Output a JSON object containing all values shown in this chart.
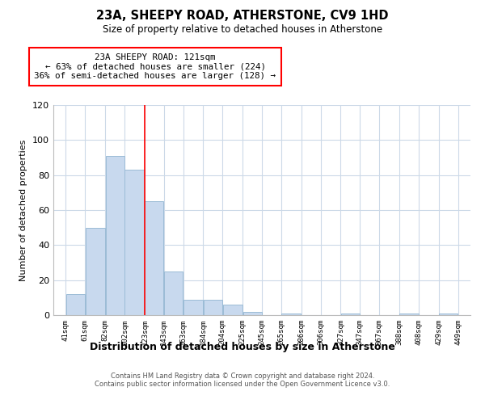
{
  "title": "23A, SHEEPY ROAD, ATHERSTONE, CV9 1HD",
  "subtitle": "Size of property relative to detached houses in Atherstone",
  "xlabel": "Distribution of detached houses by size in Atherstone",
  "ylabel": "Number of detached properties",
  "bar_left_edges": [
    41,
    61,
    82,
    102,
    123,
    143,
    163,
    184,
    204,
    225,
    245,
    265,
    286,
    306,
    327,
    347,
    367,
    388,
    408,
    429
  ],
  "bar_widths": [
    20,
    21,
    20,
    21,
    20,
    20,
    21,
    20,
    21,
    20,
    20,
    21,
    20,
    21,
    20,
    20,
    21,
    20,
    21,
    20
  ],
  "bar_heights": [
    12,
    50,
    91,
    83,
    65,
    25,
    9,
    9,
    6,
    2,
    0,
    1,
    0,
    0,
    1,
    0,
    0,
    1,
    0,
    1
  ],
  "bar_color": "#c8d9ee",
  "bar_edgecolor": "#9bbcd6",
  "tick_labels": [
    "41sqm",
    "61sqm",
    "82sqm",
    "102sqm",
    "123sqm",
    "143sqm",
    "163sqm",
    "184sqm",
    "204sqm",
    "225sqm",
    "245sqm",
    "265sqm",
    "286sqm",
    "306sqm",
    "327sqm",
    "347sqm",
    "367sqm",
    "388sqm",
    "408sqm",
    "429sqm",
    "449sqm"
  ],
  "tick_positions": [
    41,
    61,
    82,
    102,
    123,
    143,
    163,
    184,
    204,
    225,
    245,
    265,
    286,
    306,
    327,
    347,
    367,
    388,
    408,
    429,
    449
  ],
  "ylim": [
    0,
    120
  ],
  "yticks": [
    0,
    20,
    40,
    60,
    80,
    100,
    120
  ],
  "xlim": [
    28,
    462
  ],
  "property_line_x": 123,
  "annotation_title": "23A SHEEPY ROAD: 121sqm",
  "annotation_line1": "← 63% of detached houses are smaller (224)",
  "annotation_line2": "36% of semi-detached houses are larger (128) →",
  "footer_line1": "Contains HM Land Registry data © Crown copyright and database right 2024.",
  "footer_line2": "Contains public sector information licensed under the Open Government Licence v3.0.",
  "background_color": "#ffffff",
  "grid_color": "#ccd9e8"
}
